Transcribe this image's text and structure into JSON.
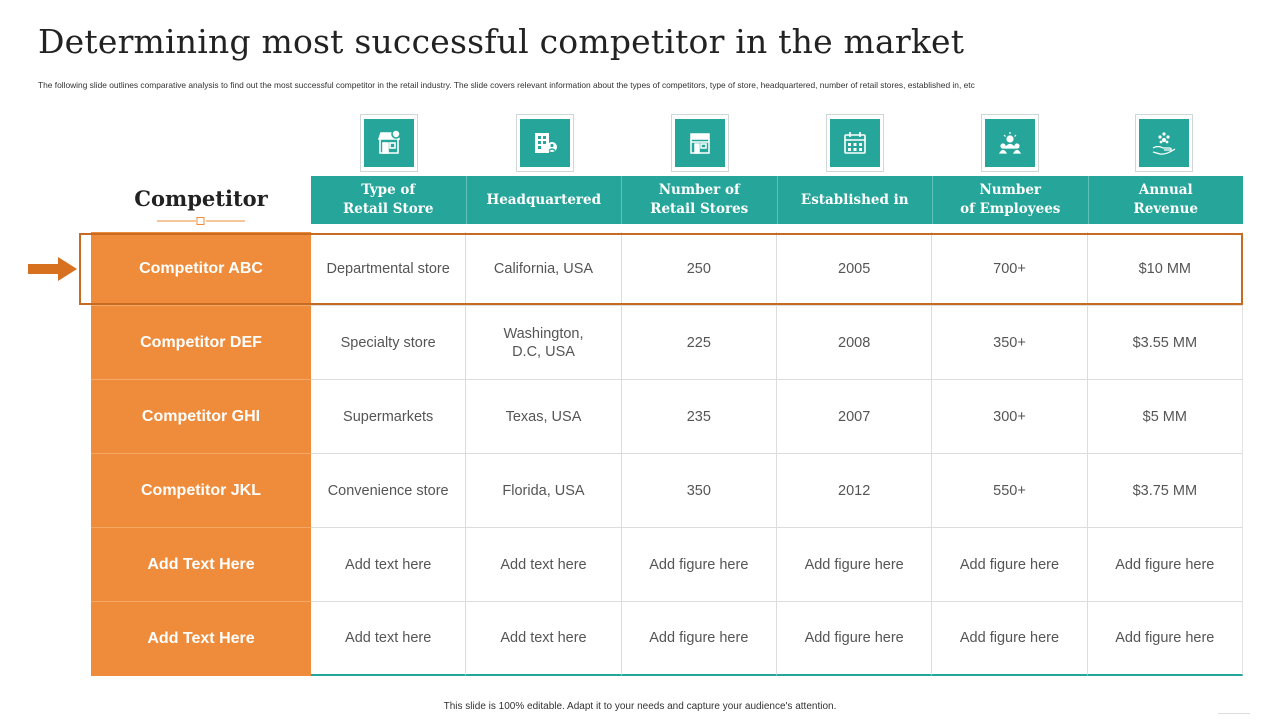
{
  "slide": {
    "title": "Determining most successful competitor in the market",
    "subtitle": "The following slide outlines comparative analysis to find out the most successful competitor in the retail industry. The slide covers relevant information about the types of competitors, type of store, headquartered, number of retail stores, established in, etc",
    "footer": "This slide is 100% editable. Adapt it to your needs and capture your audience's attention."
  },
  "table": {
    "row_header_title": "Competitor",
    "highlighted_row": "Competitor ABC",
    "columns": [
      {
        "label": "Type of\nRetail Store",
        "icon": "store-icon"
      },
      {
        "label": "Headquartered",
        "icon": "office-building-icon"
      },
      {
        "label": "Number of\nRetail Stores",
        "icon": "shop-front-icon"
      },
      {
        "label": "Established in",
        "icon": "calendar-icon"
      },
      {
        "label": "Number\nof Employees",
        "icon": "team-icon"
      },
      {
        "label": "Annual\nRevenue",
        "icon": "revenue-hand-icon"
      }
    ],
    "rows": [
      {
        "name": "Competitor ABC",
        "cells": [
          "Departmental store",
          "California, USA",
          "250",
          "2005",
          "700+",
          "$10 MM"
        ]
      },
      {
        "name": "Competitor DEF",
        "cells": [
          "Specialty store",
          "Washington,\nD.C, USA",
          "225",
          "2008",
          "350+",
          "$3.55 MM"
        ]
      },
      {
        "name": "Competitor GHI",
        "cells": [
          "Supermarkets",
          "Texas, USA",
          "235",
          "2007",
          "300+",
          "$5 MM"
        ]
      },
      {
        "name": "Competitor JKL",
        "cells": [
          "Convenience store",
          "Florida, USA",
          "350",
          "2012",
          "550+",
          "$3.75 MM"
        ]
      },
      {
        "name": "Add Text Here",
        "cells": [
          "Add text here",
          "Add text here",
          "Add figure here",
          "Add figure here",
          "Add figure here",
          "Add figure here"
        ]
      },
      {
        "name": "Add Text Here",
        "cells": [
          "Add text here",
          "Add text here",
          "Add figure here",
          "Add figure here",
          "Add figure here",
          "Add figure here"
        ]
      }
    ]
  },
  "colors": {
    "teal": "#26a69a",
    "orange": "#ef8c3b",
    "highlight_border": "#c76a22"
  }
}
